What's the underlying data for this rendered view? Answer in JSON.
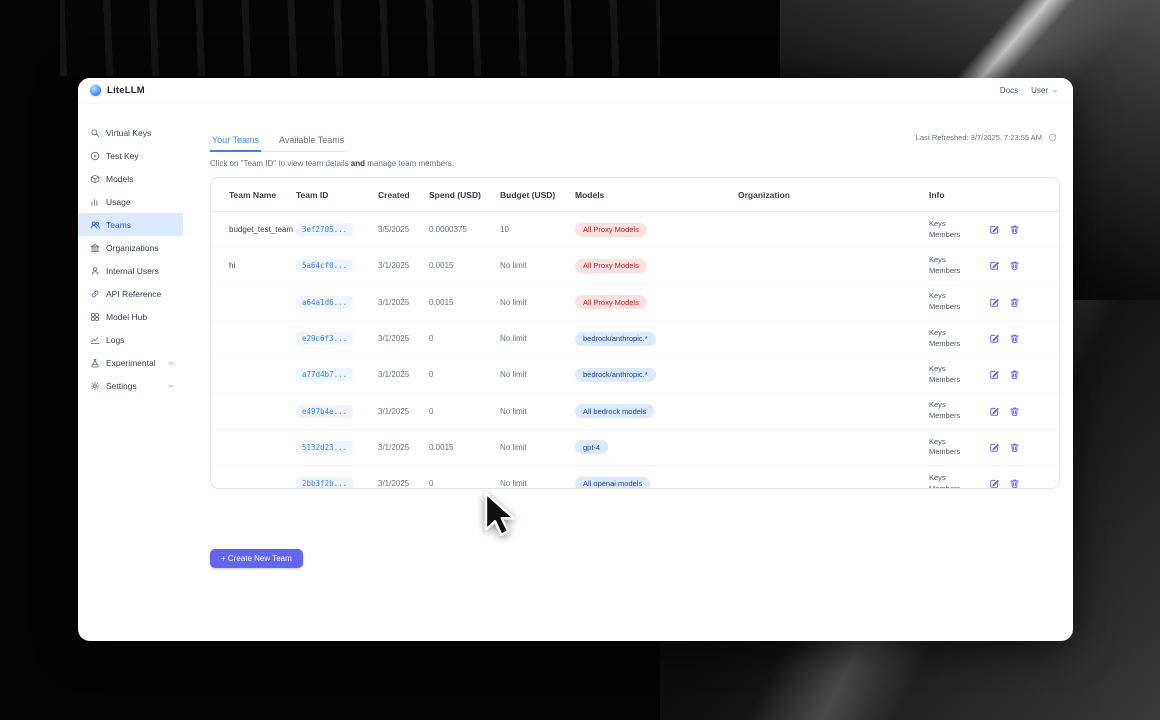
{
  "colors": {
    "accent_indigo": "#6366f1",
    "active_tab_blue": "#3b82f6",
    "sidebar_active_bg": "#dbeafe",
    "sidebar_active_text": "#2563eb",
    "team_id_chip_bg": "#eff6ff",
    "team_id_chip_text": "#3b82f6",
    "badge_red_bg": "#fee2e2",
    "badge_red_text": "#b91c1c",
    "badge_blue_bg": "#dbeafe",
    "badge_blue_text": "#1e40af"
  },
  "window": {
    "brand": "LiteLLM"
  },
  "topnav": {
    "docs_label": "Docs",
    "user_label": "User"
  },
  "sidebar": {
    "items": [
      {
        "label": "Virtual Keys",
        "icon": "search-icon"
      },
      {
        "label": "Test Key",
        "icon": "play-circle-icon"
      },
      {
        "label": "Models",
        "icon": "cube-icon"
      },
      {
        "label": "Usage",
        "icon": "bar-chart-icon"
      },
      {
        "label": "Teams",
        "icon": "users-icon",
        "active": true
      },
      {
        "label": "Organizations",
        "icon": "bank-icon"
      },
      {
        "label": "Internal Users",
        "icon": "user-icon"
      },
      {
        "label": "API Reference",
        "icon": "link-icon"
      },
      {
        "label": "Model Hub",
        "icon": "grid-icon"
      },
      {
        "label": "Logs",
        "icon": "line-chart-icon"
      },
      {
        "label": "Experimental",
        "icon": "flask-icon",
        "expandable": true
      },
      {
        "label": "Settings",
        "icon": "gear-icon",
        "expandable": true
      }
    ]
  },
  "main": {
    "tabs": [
      {
        "label": "Your Teams",
        "active": true
      },
      {
        "label": "Available Teams",
        "active": false
      }
    ],
    "last_refreshed": "Last Refreshed: 3/7/2025, 7:23:55 AM",
    "description_parts": {
      "pre": "Click on \"Team ID\" to view team details ",
      "bold": "and",
      "post": " manage team members."
    },
    "table": {
      "headers": [
        "Team Name",
        "Team ID",
        "Created",
        "Spend (USD)",
        "Budget (USD)",
        "Models",
        "Organization",
        "Info"
      ],
      "rows": [
        {
          "name": "budget_test_team",
          "id": "3ef2705...",
          "created": "3/5/2025",
          "spend": "0.0000375",
          "budget": "10",
          "model": "All Proxy Models",
          "model_variant": "red",
          "info": [
            "Keys",
            "Members"
          ]
        },
        {
          "name": "hi",
          "id": "5a64cf0...",
          "created": "3/1/2025",
          "spend": "0.0015",
          "budget": "No limit",
          "model": "All Proxy Models",
          "model_variant": "red",
          "info": [
            "Keys",
            "Members"
          ]
        },
        {
          "name": "",
          "id": "a64a1d6...",
          "created": "3/1/2025",
          "spend": "0.0015",
          "budget": "No limit",
          "model": "All Proxy Models",
          "model_variant": "red",
          "info": [
            "Keys",
            "Members"
          ]
        },
        {
          "name": "",
          "id": "e29c6f3...",
          "created": "3/1/2025",
          "spend": "0",
          "budget": "No limit",
          "model": "bedrock/anthropic.*",
          "model_variant": "blue",
          "info": [
            "Keys",
            "Members"
          ]
        },
        {
          "name": "",
          "id": "a77d4b7...",
          "created": "3/1/2025",
          "spend": "0",
          "budget": "No limit",
          "model": "bedrock/anthropic.*",
          "model_variant": "blue",
          "info": [
            "Keys",
            "Members"
          ]
        },
        {
          "name": "",
          "id": "e497b4e...",
          "created": "3/1/2025",
          "spend": "0",
          "budget": "No limit",
          "model": "All bedrock models",
          "model_variant": "blue",
          "info": [
            "Keys",
            "Members"
          ]
        },
        {
          "name": "",
          "id": "5132d23...",
          "created": "3/1/2025",
          "spend": "0.0015",
          "budget": "No limit",
          "model": "gpt-4",
          "model_variant": "blue",
          "info": [
            "Keys",
            "Members"
          ]
        },
        {
          "name": "",
          "id": "2bb3f2b...",
          "created": "3/1/2025",
          "spend": "0",
          "budget": "No limit",
          "model": "All openai models",
          "model_variant": "blue",
          "info": [
            "Keys",
            "Members"
          ]
        }
      ]
    },
    "create_button_label": "+ Create New Team"
  }
}
